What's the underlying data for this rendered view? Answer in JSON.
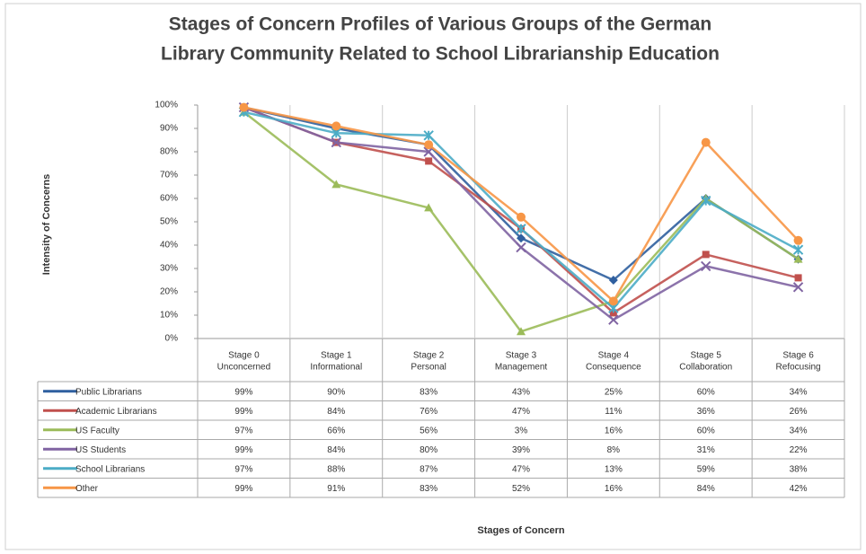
{
  "chart_data": {
    "type": "line",
    "title": "Stages of Concern Profiles of Various Groups of the German\nLibrary Community Related to School Librarianship Education",
    "y_label": "Intensity of Concerns",
    "x_label": "Stages of Concern",
    "categories": [
      "Stage 0\nUnconcerned",
      "Stage 1\nInformational",
      "Stage 2\nPersonal",
      "Stage 3\nManagement",
      "Stage 4\nConsequence",
      "Stage 5\nCollaboration",
      "Stage 6\nRefocusing"
    ],
    "ylim": [
      0,
      100
    ],
    "yticks": [
      {
        "value": 0,
        "label": "0%"
      },
      {
        "value": 10,
        "label": "10%"
      },
      {
        "value": 20,
        "label": "20%"
      },
      {
        "value": 30,
        "label": "30%"
      },
      {
        "value": 40,
        "label": "40%"
      },
      {
        "value": 50,
        "label": "50%"
      },
      {
        "value": 60,
        "label": "60%"
      },
      {
        "value": 70,
        "label": "70%"
      },
      {
        "value": 80,
        "label": "80%"
      },
      {
        "value": 90,
        "label": "90%"
      },
      {
        "value": 100,
        "label": "100%"
      }
    ],
    "grid": "vertical",
    "series": [
      {
        "name": "Public Librarians",
        "color": "#2f5f9f",
        "marker": "diamond",
        "values": [
          99,
          90,
          83,
          43,
          25,
          60,
          34
        ],
        "value_labels": [
          "99%",
          "90%",
          "83%",
          "43%",
          "25%",
          "60%",
          "34%"
        ]
      },
      {
        "name": "Academic Librarians",
        "color": "#c0504d",
        "marker": "square",
        "values": [
          99,
          84,
          76,
          47,
          11,
          36,
          26
        ],
        "value_labels": [
          "99%",
          "84%",
          "76%",
          "47%",
          "11%",
          "36%",
          "26%"
        ]
      },
      {
        "name": "US Faculty",
        "color": "#9bbb59",
        "marker": "triangle",
        "values": [
          97,
          66,
          56,
          3,
          16,
          60,
          34
        ],
        "value_labels": [
          "97%",
          "66%",
          "56%",
          "3%",
          "16%",
          "60%",
          "34%"
        ]
      },
      {
        "name": "US Students",
        "color": "#8064a2",
        "marker": "x",
        "values": [
          99,
          84,
          80,
          39,
          8,
          31,
          22
        ],
        "value_labels": [
          "99%",
          "84%",
          "80%",
          "39%",
          "8%",
          "31%",
          "22%"
        ]
      },
      {
        "name": "School Librarians",
        "color": "#4bacc6",
        "marker": "star",
        "values": [
          97,
          88,
          87,
          47,
          13,
          59,
          38
        ],
        "value_labels": [
          "97%",
          "88%",
          "87%",
          "47%",
          "13%",
          "59%",
          "38%"
        ]
      },
      {
        "name": "Other",
        "color": "#f79646",
        "marker": "circle",
        "values": [
          99,
          91,
          83,
          52,
          16,
          84,
          42
        ],
        "value_labels": [
          "99%",
          "91%",
          "83%",
          "52%",
          "16%",
          "84%",
          "42%"
        ]
      }
    ]
  }
}
